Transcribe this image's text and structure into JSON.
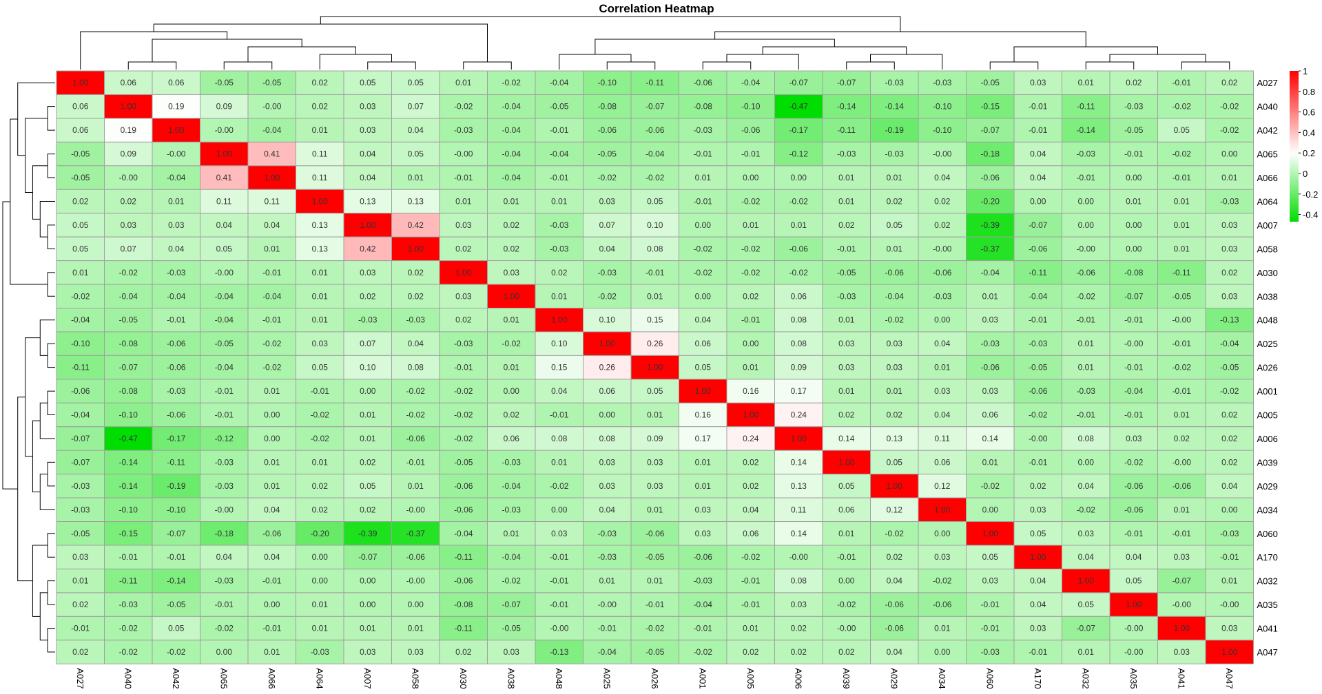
{
  "chart_data": {
    "type": "heatmap",
    "title": "Correlation Heatmap",
    "labels": [
      "A027",
      "A040",
      "A042",
      "A065",
      "A066",
      "A064",
      "A007",
      "A058",
      "A030",
      "A038",
      "A048",
      "A025",
      "A026",
      "A001",
      "A005",
      "A006",
      "A039",
      "A029",
      "A034",
      "A060",
      "A170",
      "A032",
      "A035",
      "A041",
      "A047"
    ],
    "cell_labels": [
      [
        "1.00",
        "0.06",
        "0.06",
        "-0.05",
        "-0.05",
        "0.02",
        "0.05",
        "0.05",
        "0.01",
        "-0.02",
        "-0.04",
        "-0.10",
        "-0.11",
        "-0.06",
        "-0.04",
        "-0.07",
        "-0.07",
        "-0.03",
        "-0.03",
        "-0.05",
        "0.03",
        "0.01",
        "0.02",
        "-0.01",
        "0.02"
      ],
      [
        "0.06",
        "1.00",
        "0.19",
        "0.09",
        "-0.00",
        "0.02",
        "0.03",
        "0.07",
        "-0.02",
        "-0.04",
        "-0.05",
        "-0.08",
        "-0.07",
        "-0.08",
        "-0.10",
        "-0.47",
        "-0.14",
        "-0.14",
        "-0.10",
        "-0.15",
        "-0.01",
        "-0.11",
        "-0.03",
        "-0.02",
        "-0.02"
      ],
      [
        "0.06",
        "0.19",
        "1.00",
        "-0.00",
        "-0.04",
        "0.01",
        "0.03",
        "0.04",
        "-0.03",
        "-0.04",
        "-0.01",
        "-0.06",
        "-0.06",
        "-0.03",
        "-0.06",
        "-0.17",
        "-0.11",
        "-0.19",
        "-0.10",
        "-0.07",
        "-0.01",
        "-0.14",
        "-0.05",
        "0.05",
        "-0.02"
      ],
      [
        "-0.05",
        "0.09",
        "-0.00",
        "1.00",
        "0.41",
        "0.11",
        "0.04",
        "0.05",
        "-0.00",
        "-0.04",
        "-0.04",
        "-0.05",
        "-0.04",
        "-0.01",
        "-0.01",
        "-0.12",
        "-0.03",
        "-0.03",
        "-0.00",
        "-0.18",
        "0.04",
        "-0.03",
        "-0.01",
        "-0.02",
        "0.00"
      ],
      [
        "-0.05",
        "-0.00",
        "-0.04",
        "0.41",
        "1.00",
        "0.11",
        "0.04",
        "0.01",
        "-0.01",
        "-0.04",
        "-0.01",
        "-0.02",
        "-0.02",
        "0.01",
        "0.00",
        "0.00",
        "0.01",
        "0.01",
        "0.04",
        "-0.06",
        "0.04",
        "-0.01",
        "0.00",
        "-0.01",
        "0.01"
      ],
      [
        "0.02",
        "0.02",
        "0.01",
        "0.11",
        "0.11",
        "1.00",
        "0.13",
        "0.13",
        "0.01",
        "0.01",
        "0.01",
        "0.03",
        "0.05",
        "-0.01",
        "-0.02",
        "-0.02",
        "0.01",
        "0.02",
        "0.02",
        "-0.20",
        "0.00",
        "0.00",
        "0.01",
        "0.01",
        "-0.03"
      ],
      [
        "0.05",
        "0.03",
        "0.03",
        "0.04",
        "0.04",
        "0.13",
        "1.00",
        "0.42",
        "0.03",
        "0.02",
        "-0.03",
        "0.07",
        "0.10",
        "0.00",
        "0.01",
        "0.01",
        "0.02",
        "0.05",
        "0.02",
        "-0.39",
        "-0.07",
        "0.00",
        "0.00",
        "0.01",
        "0.03"
      ],
      [
        "0.05",
        "0.07",
        "0.04",
        "0.05",
        "0.01",
        "0.13",
        "0.42",
        "1.00",
        "0.02",
        "0.02",
        "-0.03",
        "0.04",
        "0.08",
        "-0.02",
        "-0.02",
        "-0.06",
        "-0.01",
        "0.01",
        "-0.00",
        "-0.37",
        "-0.06",
        "-0.00",
        "0.00",
        "0.01",
        "0.03"
      ],
      [
        "0.01",
        "-0.02",
        "-0.03",
        "-0.00",
        "-0.01",
        "0.01",
        "0.03",
        "0.02",
        "1.00",
        "0.03",
        "0.02",
        "-0.03",
        "-0.01",
        "-0.02",
        "-0.02",
        "-0.02",
        "-0.05",
        "-0.06",
        "-0.06",
        "-0.04",
        "-0.11",
        "-0.06",
        "-0.08",
        "-0.11",
        "0.02"
      ],
      [
        "-0.02",
        "-0.04",
        "-0.04",
        "-0.04",
        "-0.04",
        "0.01",
        "0.02",
        "0.02",
        "0.03",
        "1.00",
        "0.01",
        "-0.02",
        "0.01",
        "0.00",
        "0.02",
        "0.06",
        "-0.03",
        "-0.04",
        "-0.03",
        "0.01",
        "-0.04",
        "-0.02",
        "-0.07",
        "-0.05",
        "0.03"
      ],
      [
        "-0.04",
        "-0.05",
        "-0.01",
        "-0.04",
        "-0.01",
        "0.01",
        "-0.03",
        "-0.03",
        "0.02",
        "0.01",
        "1.00",
        "0.10",
        "0.15",
        "0.04",
        "-0.01",
        "0.08",
        "0.01",
        "-0.02",
        "0.00",
        "0.03",
        "-0.01",
        "-0.01",
        "-0.01",
        "-0.00",
        "-0.13"
      ],
      [
        "-0.10",
        "-0.08",
        "-0.06",
        "-0.05",
        "-0.02",
        "0.03",
        "0.07",
        "0.04",
        "-0.03",
        "-0.02",
        "0.10",
        "1.00",
        "0.26",
        "0.06",
        "0.00",
        "0.08",
        "0.03",
        "0.03",
        "0.04",
        "-0.03",
        "-0.03",
        "0.01",
        "-0.00",
        "-0.01",
        "-0.04"
      ],
      [
        "-0.11",
        "-0.07",
        "-0.06",
        "-0.04",
        "-0.02",
        "0.05",
        "0.10",
        "0.08",
        "-0.01",
        "0.01",
        "0.15",
        "0.26",
        "1.00",
        "0.05",
        "0.01",
        "0.09",
        "0.03",
        "0.03",
        "0.01",
        "-0.06",
        "-0.05",
        "0.01",
        "-0.01",
        "-0.02",
        "-0.05"
      ],
      [
        "-0.06",
        "-0.08",
        "-0.03",
        "-0.01",
        "0.01",
        "-0.01",
        "0.00",
        "-0.02",
        "-0.02",
        "0.00",
        "0.04",
        "0.06",
        "0.05",
        "1.00",
        "0.16",
        "0.17",
        "0.01",
        "0.01",
        "0.03",
        "0.03",
        "-0.06",
        "-0.03",
        "-0.04",
        "-0.01",
        "-0.02"
      ],
      [
        "-0.04",
        "-0.10",
        "-0.06",
        "-0.01",
        "0.00",
        "-0.02",
        "0.01",
        "-0.02",
        "-0.02",
        "0.02",
        "-0.01",
        "0.00",
        "0.01",
        "0.16",
        "1.00",
        "0.24",
        "0.02",
        "0.02",
        "0.04",
        "0.06",
        "-0.02",
        "-0.01",
        "-0.01",
        "0.01",
        "0.02"
      ],
      [
        "-0.07",
        "-0.47",
        "-0.17",
        "-0.12",
        "0.00",
        "-0.02",
        "0.01",
        "-0.06",
        "-0.02",
        "0.06",
        "0.08",
        "0.08",
        "0.09",
        "0.17",
        "0.24",
        "1.00",
        "0.14",
        "0.13",
        "0.11",
        "0.14",
        "-0.00",
        "0.08",
        "0.03",
        "0.02",
        "0.02"
      ],
      [
        "-0.07",
        "-0.14",
        "-0.11",
        "-0.03",
        "0.01",
        "0.01",
        "0.02",
        "-0.01",
        "-0.05",
        "-0.03",
        "0.01",
        "0.03",
        "0.03",
        "0.01",
        "0.02",
        "0.14",
        "1.00",
        "0.05",
        "0.06",
        "0.01",
        "-0.01",
        "0.00",
        "-0.02",
        "-0.00",
        "0.02"
      ],
      [
        "-0.03",
        "-0.14",
        "-0.19",
        "-0.03",
        "0.01",
        "0.02",
        "0.05",
        "0.01",
        "-0.06",
        "-0.04",
        "-0.02",
        "0.03",
        "0.03",
        "0.01",
        "0.02",
        "0.13",
        "0.05",
        "1.00",
        "0.12",
        "-0.02",
        "0.02",
        "0.04",
        "-0.06",
        "-0.06",
        "0.04"
      ],
      [
        "-0.03",
        "-0.10",
        "-0.10",
        "-0.00",
        "0.04",
        "0.02",
        "0.02",
        "-0.00",
        "-0.06",
        "-0.03",
        "0.00",
        "0.04",
        "0.01",
        "0.03",
        "0.04",
        "0.11",
        "0.06",
        "0.12",
        "1.00",
        "0.00",
        "0.03",
        "-0.02",
        "-0.06",
        "0.01",
        "0.00"
      ],
      [
        "-0.05",
        "-0.15",
        "-0.07",
        "-0.18",
        "-0.06",
        "-0.20",
        "-0.39",
        "-0.37",
        "-0.04",
        "0.01",
        "0.03",
        "-0.03",
        "-0.06",
        "0.03",
        "0.06",
        "0.14",
        "0.01",
        "-0.02",
        "0.00",
        "1.00",
        "0.05",
        "0.03",
        "-0.01",
        "-0.01",
        "-0.03"
      ],
      [
        "0.03",
        "-0.01",
        "-0.01",
        "0.04",
        "0.04",
        "0.00",
        "-0.07",
        "-0.06",
        "-0.11",
        "-0.04",
        "-0.01",
        "-0.03",
        "-0.05",
        "-0.06",
        "-0.02",
        "-0.00",
        "-0.01",
        "0.02",
        "0.03",
        "0.05",
        "1.00",
        "0.04",
        "0.04",
        "0.03",
        "-0.01"
      ],
      [
        "0.01",
        "-0.11",
        "-0.14",
        "-0.03",
        "-0.01",
        "0.00",
        "0.00",
        "-0.00",
        "-0.06",
        "-0.02",
        "-0.01",
        "0.01",
        "0.01",
        "-0.03",
        "-0.01",
        "0.08",
        "0.00",
        "0.04",
        "-0.02",
        "0.03",
        "0.04",
        "1.00",
        "0.05",
        "-0.07",
        "0.01"
      ],
      [
        "0.02",
        "-0.03",
        "-0.05",
        "-0.01",
        "0.00",
        "0.01",
        "0.00",
        "0.00",
        "-0.08",
        "-0.07",
        "-0.01",
        "-0.00",
        "-0.01",
        "-0.04",
        "-0.01",
        "0.03",
        "-0.02",
        "-0.06",
        "-0.06",
        "-0.01",
        "0.04",
        "0.05",
        "1.00",
        "-0.00",
        "-0.00"
      ],
      [
        "-0.01",
        "-0.02",
        "0.05",
        "-0.02",
        "-0.01",
        "0.01",
        "0.01",
        "0.01",
        "-0.11",
        "-0.05",
        "-0.00",
        "-0.01",
        "-0.02",
        "-0.01",
        "0.01",
        "0.02",
        "-0.00",
        "-0.06",
        "0.01",
        "-0.01",
        "0.03",
        "-0.07",
        "-0.00",
        "1.00",
        "0.03"
      ],
      [
        "0.02",
        "-0.02",
        "-0.02",
        "0.00",
        "0.01",
        "-0.03",
        "0.03",
        "0.03",
        "0.02",
        "0.03",
        "-0.13",
        "-0.04",
        "-0.05",
        "-0.02",
        "0.02",
        "0.02",
        "0.02",
        "0.04",
        "0.00",
        "-0.03",
        "-0.01",
        "0.01",
        "-0.00",
        "0.03",
        "1.00"
      ]
    ],
    "legend": {
      "ticks": [
        "1",
        "0.8",
        "0.6",
        "0.4",
        "0.2",
        "0",
        "-0.2",
        "-0.4"
      ],
      "tick_values": [
        1,
        0.8,
        0.6,
        0.4,
        0.2,
        0,
        -0.2,
        -0.4
      ],
      "range": [
        -0.47,
        1.0
      ]
    },
    "colors": {
      "low": "#00dd00",
      "mid": "#ffffff",
      "high": "#ff0000",
      "grid": "#a0a0a0",
      "dendrogram": "#000000"
    },
    "grid": true,
    "legend_placement": "right",
    "row_dendrogram": "left",
    "col_dendrogram": "top"
  }
}
